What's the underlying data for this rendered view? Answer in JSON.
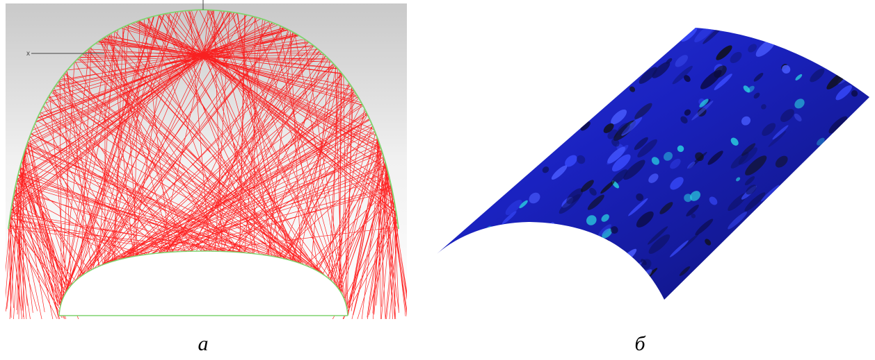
{
  "figure": {
    "panels": [
      {
        "label": "a",
        "axis_label": "x"
      },
      {
        "label": "б"
      }
    ]
  }
}
